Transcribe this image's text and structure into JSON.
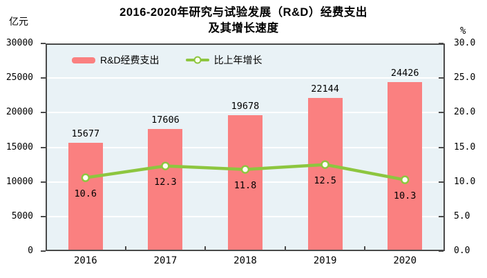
{
  "title": {
    "line1": "2016-2020年研究与试验发展（R&D）经费支出",
    "line2": "及其增长速度"
  },
  "left_axis_unit": "亿元",
  "right_axis_unit": "%",
  "legend": {
    "bar_label": "R&D经费支出",
    "line_label": "比上年增长"
  },
  "colors": {
    "bar": "#fa8080",
    "line": "#8dc63f",
    "marker_fill": "#fefef4",
    "plot_bg": "#e9f2f6",
    "grid": "#ffffff",
    "frame": "#4a4a4a",
    "text": "#000000"
  },
  "chart_data": {
    "type": "bar",
    "title": "2016-2020年研究与试验发展（R&D）经费支出及其增长速度",
    "categories": [
      "2016",
      "2017",
      "2018",
      "2019",
      "2020"
    ],
    "series": [
      {
        "name": "R&D经费支出",
        "type": "bar",
        "axis": "left",
        "unit": "亿元",
        "values": [
          15677,
          17606,
          19678,
          22144,
          24426
        ]
      },
      {
        "name": "比上年增长",
        "type": "line",
        "axis": "right",
        "unit": "%",
        "values": [
          10.6,
          12.3,
          11.8,
          12.5,
          10.3
        ]
      }
    ],
    "left_axis": {
      "ticks": [
        0,
        5000,
        10000,
        15000,
        20000,
        25000,
        30000
      ],
      "range": [
        0,
        30000
      ]
    },
    "right_axis": {
      "ticks": [
        "0.0",
        "5.0",
        "10.0",
        "15.0",
        "20.0",
        "25.0",
        "30.0"
      ],
      "range": [
        0,
        30
      ]
    },
    "grid": true,
    "legend_position": "top-inside"
  }
}
